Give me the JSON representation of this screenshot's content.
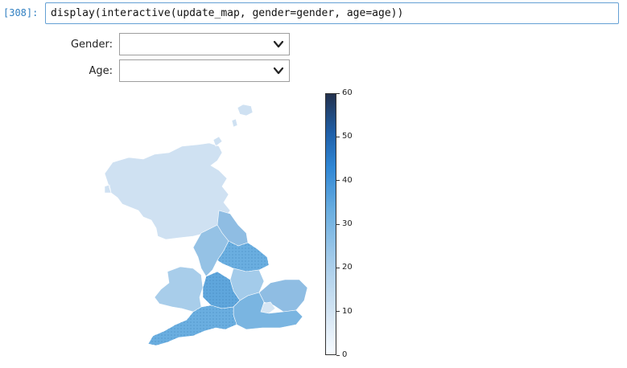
{
  "cell": {
    "prompt": "[308]:",
    "code": "display(interactive(update_map, gender=gender, age=age))"
  },
  "widgets": {
    "gender": {
      "label": "Gender:",
      "value": ""
    },
    "age": {
      "label": "Age:",
      "value": ""
    }
  },
  "colorbar": {
    "ticks": [
      "0",
      "10",
      "20",
      "30",
      "40",
      "50",
      "60"
    ],
    "min": 0,
    "max": 60,
    "colors": {
      "low": "#f7fbff",
      "mid": "#6aaee0",
      "high": "#23314d"
    }
  },
  "map": {
    "regions": [
      {
        "name": "Scotland",
        "value": 10
      },
      {
        "name": "North East",
        "value": 30
      },
      {
        "name": "North West",
        "value": 27
      },
      {
        "name": "Yorkshire and the Humber",
        "value": 33
      },
      {
        "name": "Wales",
        "value": 22
      },
      {
        "name": "West Midlands",
        "value": 35
      },
      {
        "name": "East Midlands",
        "value": 24
      },
      {
        "name": "East of England",
        "value": 28
      },
      {
        "name": "London",
        "value": 15
      },
      {
        "name": "South East",
        "value": 31
      },
      {
        "name": "South West",
        "value": 32
      }
    ]
  }
}
